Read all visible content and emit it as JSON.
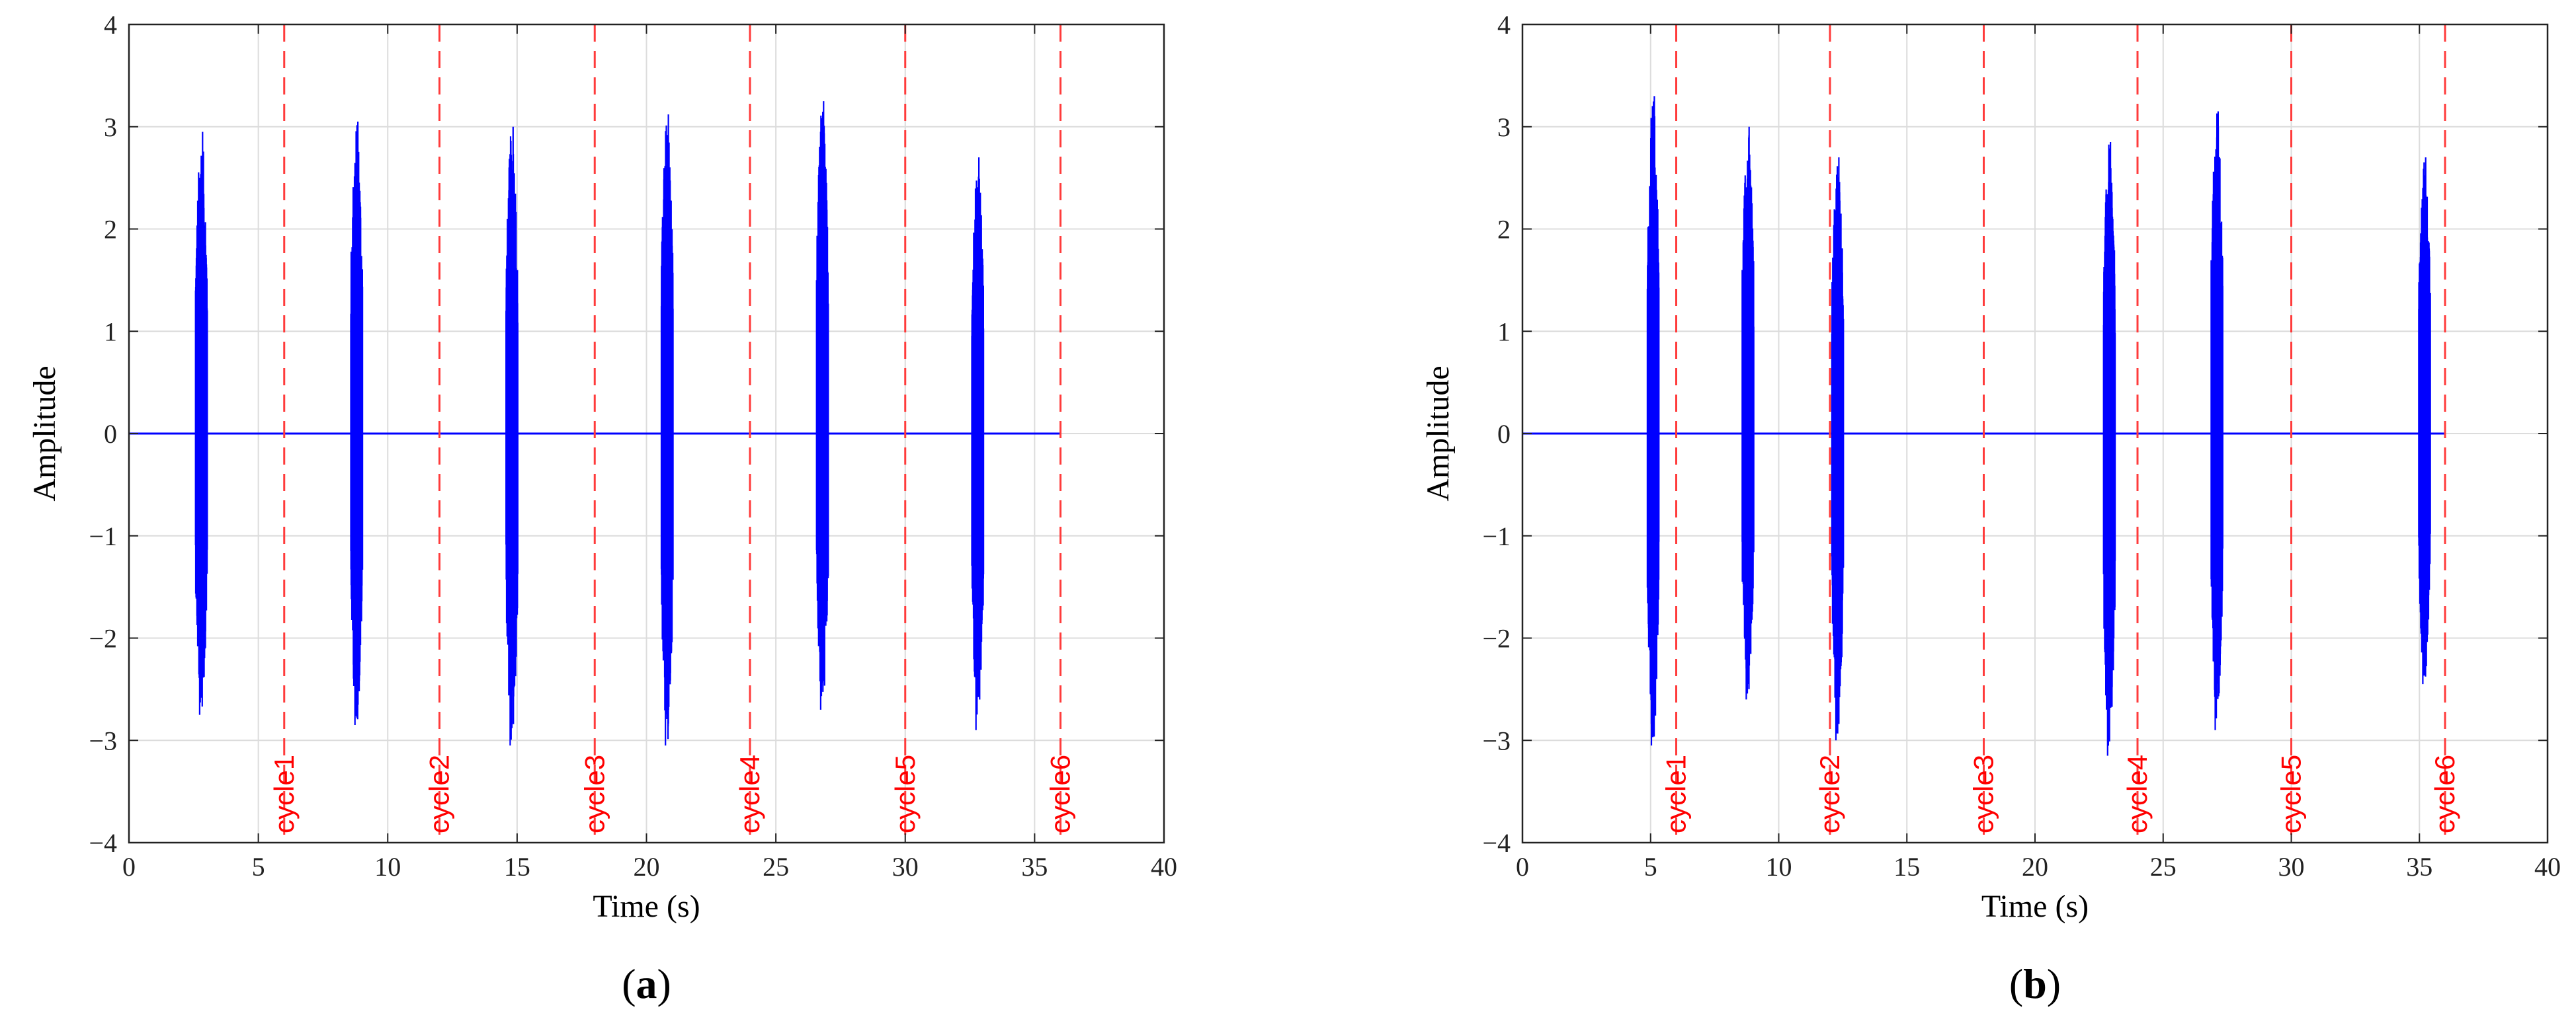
{
  "colors": {
    "signal": "#0000ff",
    "cycle_line": "#ff3b3b",
    "grid": "#dcdcdc",
    "axis": "#222222"
  },
  "chart_data": [
    {
      "type": "line",
      "panel_label": "a",
      "xlabel": "Time (s)",
      "ylabel": "Amplitude",
      "xlim": [
        0,
        40
      ],
      "ylim": [
        -4,
        4
      ],
      "x_ticks": [
        0,
        5,
        10,
        15,
        20,
        25,
        30,
        35,
        40
      ],
      "y_ticks": [
        -4,
        -3,
        -2,
        -1,
        0,
        1,
        2,
        3,
        4
      ],
      "x_tick_labels": [
        "0",
        "5",
        "10",
        "15",
        "20",
        "25",
        "30",
        "35",
        "40"
      ],
      "y_tick_labels": [
        "−4",
        "−3",
        "−2",
        "−1",
        "0",
        "1",
        "2",
        "3",
        "4"
      ],
      "grid": true,
      "signal": {
        "x_range": [
          0,
          36
        ],
        "bursts": [
          {
            "center": 2.8,
            "width": 0.45,
            "max": 2.95,
            "min": -2.75
          },
          {
            "center": 8.8,
            "width": 0.45,
            "max": 3.05,
            "min": -2.85
          },
          {
            "center": 14.8,
            "width": 0.45,
            "max": 3.0,
            "min": -3.05
          },
          {
            "center": 20.8,
            "width": 0.45,
            "max": 3.12,
            "min": -3.05
          },
          {
            "center": 26.8,
            "width": 0.45,
            "max": 3.25,
            "min": -2.7
          },
          {
            "center": 32.8,
            "width": 0.45,
            "max": 2.7,
            "min": -2.9
          }
        ]
      },
      "cycle_lines": [
        {
          "x": 6,
          "label": "cycle1"
        },
        {
          "x": 12,
          "label": "cycle2"
        },
        {
          "x": 18,
          "label": "cycle3"
        },
        {
          "x": 24,
          "label": "cycle4"
        },
        {
          "x": 30,
          "label": "cycle5"
        },
        {
          "x": 36,
          "label": "cycle6"
        }
      ]
    },
    {
      "type": "line",
      "panel_label": "b",
      "xlabel": "Time (s)",
      "ylabel": "Amplitude",
      "xlim": [
        0,
        40
      ],
      "ylim": [
        -4,
        4
      ],
      "x_ticks": [
        0,
        5,
        10,
        15,
        20,
        25,
        30,
        35,
        40
      ],
      "y_ticks": [
        -4,
        -3,
        -2,
        -1,
        0,
        1,
        2,
        3,
        4
      ],
      "x_tick_labels": [
        "0",
        "5",
        "10",
        "15",
        "20",
        "25",
        "30",
        "35",
        "40"
      ],
      "y_tick_labels": [
        "−4",
        "−3",
        "−2",
        "−1",
        "0",
        "1",
        "2",
        "3",
        "4"
      ],
      "grid": true,
      "signal": {
        "x_range": [
          0,
          36
        ],
        "bursts": [
          {
            "center": 5.1,
            "width": 0.45,
            "max": 3.3,
            "min": -3.05
          },
          {
            "center": 8.8,
            "width": 0.45,
            "max": 3.0,
            "min": -2.6
          },
          {
            "center": 12.3,
            "width": 0.45,
            "max": 2.7,
            "min": -3.0
          },
          {
            "center": 22.9,
            "width": 0.45,
            "max": 2.85,
            "min": -3.15
          },
          {
            "center": 27.1,
            "width": 0.45,
            "max": 3.15,
            "min": -2.9
          },
          {
            "center": 35.2,
            "width": 0.45,
            "max": 2.7,
            "min": -2.45
          }
        ]
      },
      "cycle_lines": [
        {
          "x": 6,
          "label": "cycle1"
        },
        {
          "x": 12,
          "label": "cycle2"
        },
        {
          "x": 18,
          "label": "cycle3"
        },
        {
          "x": 24,
          "label": "cycle4"
        },
        {
          "x": 30,
          "label": "cycle5"
        },
        {
          "x": 36,
          "label": "cycle6"
        }
      ]
    }
  ]
}
